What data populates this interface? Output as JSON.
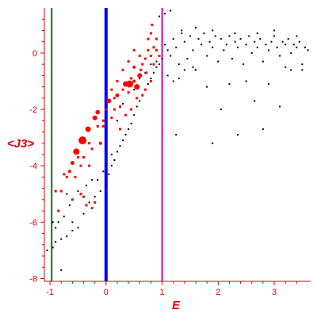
{
  "chart_data": {
    "type": "scatter",
    "xlabel": "E",
    "ylabel": "<J3>",
    "xlim": [
      -1.1,
      3.65
    ],
    "ylim": [
      -8.1,
      1.6
    ],
    "x_ticks": [
      -1,
      0,
      1,
      2,
      3
    ],
    "y_ticks": [
      0,
      -2,
      -4,
      -6,
      -8
    ],
    "axis_color": "#e00000",
    "vertical_lines": [
      {
        "x": -0.97,
        "color": "#008000"
      },
      {
        "x": 0.0,
        "color": "#0000ff"
      },
      {
        "x": 1.0,
        "color": "#cc00cc"
      }
    ],
    "series": [
      {
        "color": "#000000",
        "marker": "small-dot",
        "points": [
          [
            -1.05,
            -7.0
          ],
          [
            -0.95,
            -6.9
          ],
          [
            -0.9,
            -6.7
          ],
          [
            -0.8,
            -6.6
          ],
          [
            -0.7,
            -6.5
          ],
          [
            -0.6,
            -6.3
          ],
          [
            -0.5,
            -6.2
          ],
          [
            -0.9,
            -6.2
          ],
          [
            -0.85,
            -6.0
          ],
          [
            -0.75,
            -5.8
          ],
          [
            -0.6,
            -6.0
          ],
          [
            -0.4,
            -5.7
          ],
          [
            -0.3,
            -5.3
          ],
          [
            -0.2,
            -5.1
          ],
          [
            -0.1,
            -4.9
          ],
          [
            0.0,
            -4.7
          ],
          [
            -0.05,
            -4.2
          ],
          [
            0.05,
            -4.3
          ],
          [
            0.1,
            -4.0
          ],
          [
            0.15,
            -3.8
          ],
          [
            0.2,
            -3.5
          ],
          [
            0.25,
            -3.3
          ],
          [
            0.3,
            -3.1
          ],
          [
            0.35,
            -2.9
          ],
          [
            0.4,
            -2.7
          ],
          [
            0.45,
            -2.5
          ],
          [
            0.5,
            -2.2
          ],
          [
            0.55,
            -1.9
          ],
          [
            0.6,
            -1.7
          ],
          [
            0.65,
            -1.5
          ],
          [
            0.7,
            -1.3
          ],
          [
            0.75,
            -1.1
          ],
          [
            0.8,
            -0.9
          ],
          [
            0.85,
            -0.7
          ],
          [
            0.9,
            -0.5
          ],
          [
            0.95,
            -0.4
          ],
          [
            -0.8,
            -7.7
          ],
          [
            -0.7,
            -5.0
          ],
          [
            -0.5,
            -4.9
          ],
          [
            -0.35,
            -4.7
          ],
          [
            -0.25,
            -4.5
          ],
          [
            -0.15,
            -4.5
          ],
          [
            0.1,
            -3.6
          ],
          [
            0.2,
            -2.4
          ],
          [
            0.3,
            -1.8
          ],
          [
            0.5,
            -1.3
          ],
          [
            0.6,
            -0.9
          ],
          [
            0.7,
            -0.7
          ],
          [
            0.8,
            -0.4
          ],
          [
            0.9,
            -0.3
          ],
          [
            1.0,
            -0.2
          ],
          [
            1.05,
            0.3
          ],
          [
            1.1,
            0.1
          ],
          [
            1.15,
            -0.1
          ],
          [
            1.2,
            0.5
          ],
          [
            1.25,
            0.2
          ],
          [
            1.3,
            -0.4
          ],
          [
            1.35,
            0.8
          ],
          [
            1.4,
            0.4
          ],
          [
            1.45,
            -0.2
          ],
          [
            1.5,
            0.6
          ],
          [
            1.55,
            0.1
          ],
          [
            1.6,
            -0.6
          ],
          [
            1.65,
            0.5
          ],
          [
            1.7,
            0.3
          ],
          [
            1.75,
            0.7
          ],
          [
            1.8,
            -0.1
          ],
          [
            1.85,
            0.4
          ],
          [
            1.9,
            0.2
          ],
          [
            1.95,
            0.6
          ],
          [
            2.0,
            -0.3
          ],
          [
            2.05,
            0.5
          ],
          [
            2.1,
            0.1
          ],
          [
            2.15,
            0.3
          ],
          [
            2.2,
            0.6
          ],
          [
            2.25,
            -0.2
          ],
          [
            2.3,
            0.4
          ],
          [
            2.35,
            0.2
          ],
          [
            2.4,
            0.5
          ],
          [
            2.45,
            -0.4
          ],
          [
            2.5,
            0.3
          ],
          [
            2.55,
            0.6
          ],
          [
            2.6,
            0.0
          ],
          [
            2.65,
            0.4
          ],
          [
            2.7,
            0.2
          ],
          [
            2.75,
            0.5
          ],
          [
            2.8,
            -0.3
          ],
          [
            2.85,
            0.3
          ],
          [
            2.9,
            0.1
          ],
          [
            2.95,
            0.4
          ],
          [
            3.0,
            0.6
          ],
          [
            3.05,
            0.2
          ],
          [
            3.1,
            -0.1
          ],
          [
            3.15,
            0.4
          ],
          [
            3.2,
            0.3
          ],
          [
            3.25,
            0.5
          ],
          [
            3.3,
            0.0
          ],
          [
            3.35,
            0.3
          ],
          [
            3.4,
            0.2
          ],
          [
            3.45,
            0.4
          ],
          [
            3.5,
            -0.4
          ],
          [
            3.55,
            0.2
          ],
          [
            3.6,
            0.1
          ],
          [
            1.1,
            -0.8
          ],
          [
            1.2,
            -1.0
          ],
          [
            1.3,
            -0.9
          ],
          [
            1.4,
            -0.6
          ],
          [
            1.55,
            -0.5
          ],
          [
            1.8,
            -1.2
          ],
          [
            2.2,
            -1.1
          ],
          [
            2.5,
            -1.0
          ],
          [
            2.9,
            -1.1
          ],
          [
            1.25,
            -2.9
          ],
          [
            1.9,
            -3.2
          ],
          [
            2.05,
            -2.0
          ],
          [
            2.35,
            -2.9
          ],
          [
            2.65,
            -1.7
          ],
          [
            2.8,
            -2.7
          ],
          [
            3.1,
            -1.9
          ],
          [
            3.2,
            -0.5
          ],
          [
            3.3,
            -0.6
          ],
          [
            3.5,
            -0.6
          ],
          [
            1.15,
            1.5
          ],
          [
            1.05,
            1.4
          ],
          [
            0.95,
            1.3
          ],
          [
            1.35,
            0.7
          ],
          [
            1.6,
            0.9
          ],
          [
            1.9,
            0.8
          ],
          [
            2.3,
            0.7
          ],
          [
            2.7,
            0.7
          ],
          [
            3.0,
            0.8
          ],
          [
            3.4,
            0.6
          ],
          [
            -0.95,
            -6.0
          ],
          [
            -0.65,
            -5.4
          ],
          [
            0.0,
            -3.9
          ]
        ]
      },
      {
        "color": "#ff0000",
        "marker": "sized-circle",
        "points": [
          [
            -0.42,
            -3.1,
            5.0
          ],
          [
            -0.53,
            -3.5,
            4.0
          ],
          [
            -0.32,
            -2.7,
            3.5
          ],
          [
            -0.2,
            -2.3,
            3.0
          ],
          [
            -0.15,
            -2.1,
            2.8
          ],
          [
            0.05,
            -1.7,
            3.0
          ],
          [
            0.42,
            -1.1,
            4.5
          ],
          [
            0.55,
            -1.2,
            3.5
          ],
          [
            0.6,
            -0.8,
            3.0
          ],
          [
            0.35,
            -1.1,
            3.5
          ],
          [
            0.2,
            -1.5,
            2.5
          ],
          [
            -0.6,
            -3.9,
            2.5
          ],
          [
            -0.65,
            -4.2,
            2.0
          ],
          [
            -0.75,
            -4.3,
            1.5
          ],
          [
            -0.8,
            -4.9,
            1.5
          ],
          [
            -0.55,
            -4.4,
            1.5
          ],
          [
            -0.45,
            -4.0,
            1.5
          ],
          [
            -0.4,
            -5.1,
            1.5
          ],
          [
            -0.25,
            -3.4,
            1.5
          ],
          [
            -0.1,
            -3.2,
            2.0
          ],
          [
            -0.05,
            -2.6,
            1.5
          ],
          [
            0.1,
            -2.3,
            1.5
          ],
          [
            0.15,
            -2.0,
            1.5
          ],
          [
            0.25,
            -1.9,
            1.5
          ],
          [
            0.3,
            -1.3,
            1.5
          ],
          [
            0.45,
            -0.9,
            1.5
          ],
          [
            0.5,
            -0.5,
            2.0
          ],
          [
            0.65,
            -0.4,
            1.5
          ],
          [
            0.7,
            -0.2,
            1.5
          ],
          [
            0.75,
            0.1,
            1.5
          ],
          [
            0.8,
            -0.1,
            1.5
          ],
          [
            0.85,
            0.2,
            1.5
          ],
          [
            0.9,
            0.1,
            1.5
          ],
          [
            0.6,
            -0.1,
            1.5
          ],
          [
            0.5,
            0.1,
            1.5
          ],
          [
            0.4,
            -0.3,
            1.5
          ],
          [
            0.3,
            -0.6,
            1.5
          ],
          [
            0.2,
            -1.0,
            1.5
          ],
          [
            0.1,
            -1.3,
            1.5
          ],
          [
            0.0,
            -2.0,
            1.5
          ],
          [
            -0.15,
            -2.6,
            1.5
          ],
          [
            -0.3,
            -3.2,
            1.5
          ],
          [
            -0.4,
            -3.7,
            1.5
          ],
          [
            -0.5,
            -3.7,
            1.5
          ],
          [
            -0.7,
            -4.4,
            1.5
          ],
          [
            -0.85,
            -5.6,
            1.5
          ],
          [
            -0.9,
            -4.9,
            1.5
          ],
          [
            -0.6,
            -5.2,
            1.5
          ],
          [
            0.35,
            -2.2,
            1.5
          ],
          [
            0.45,
            -2.0,
            1.5
          ],
          [
            0.55,
            -1.6,
            1.5
          ],
          [
            0.65,
            -1.5,
            1.5
          ],
          [
            0.7,
            -1.3,
            1.5
          ],
          [
            0.8,
            -1.0,
            1.5
          ],
          [
            0.85,
            -0.4,
            1.5
          ],
          [
            0.95,
            -0.1,
            1.5
          ],
          [
            0.75,
            0.5,
            1.5
          ],
          [
            0.8,
            0.7,
            1.5
          ],
          [
            0.9,
            0.5,
            1.5
          ],
          [
            0.82,
            1.0,
            1.5
          ],
          [
            0.72,
            -0.7,
            1.5
          ],
          [
            -0.45,
            -5.0,
            1.5
          ],
          [
            -0.25,
            -5.5,
            1.5
          ],
          [
            -0.35,
            -5.4,
            1.5
          ],
          [
            -0.2,
            -5.3,
            1.5
          ],
          [
            0.25,
            -2.7,
            1.5
          ],
          [
            0.4,
            -1.4,
            1.5
          ],
          [
            0.15,
            -1.6,
            1.5
          ],
          [
            -0.05,
            -2.4,
            1.5
          ],
          [
            -0.3,
            -4.0,
            1.5
          ],
          [
            0.5,
            -1.0,
            2.0
          ],
          [
            0.62,
            -0.6,
            1.5
          ]
        ]
      }
    ]
  }
}
